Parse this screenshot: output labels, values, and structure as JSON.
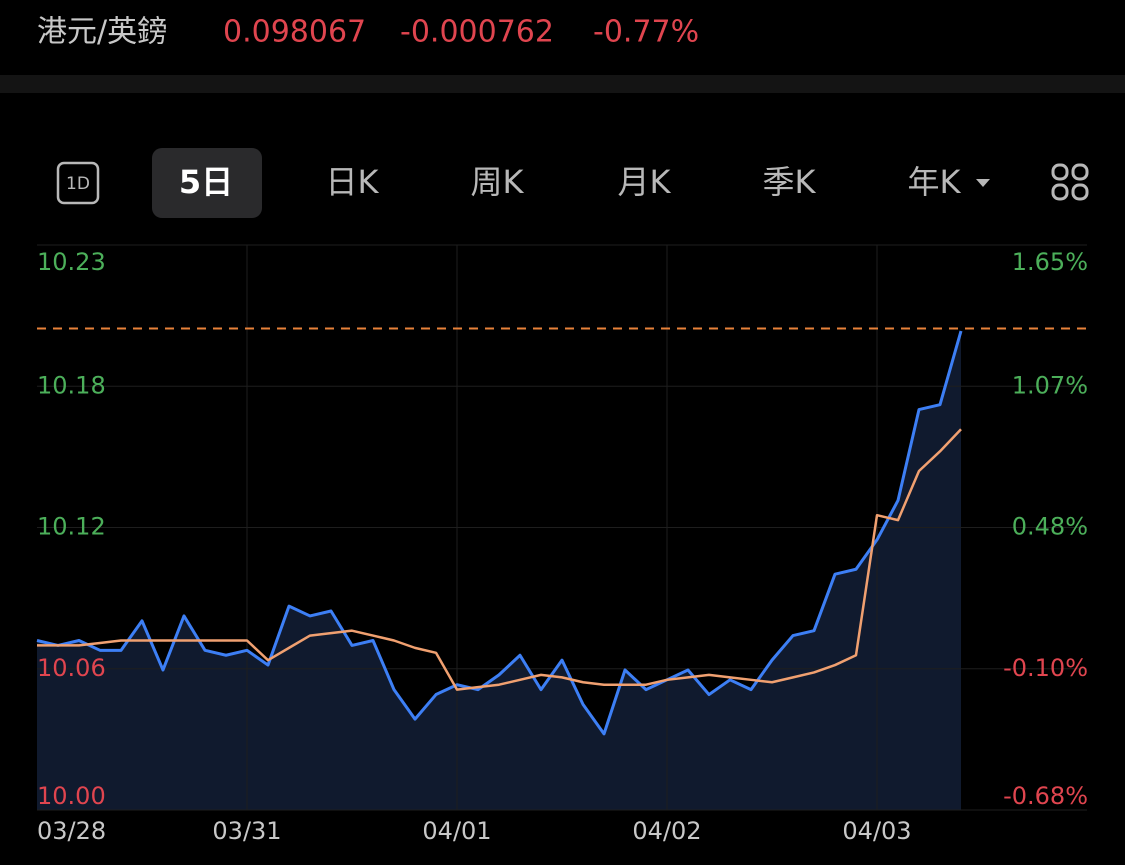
{
  "header": {
    "pair": "港元/英鎊",
    "price": "0.098067",
    "change": "-0.000762",
    "change_pct": "-0.77%"
  },
  "tabs": [
    "1D",
    "5日",
    "日K",
    "周K",
    "月K",
    "季K",
    "年K"
  ],
  "selected_tab": "5日",
  "chart_data": {
    "type": "line",
    "x": [
      0,
      0.1,
      0.2,
      0.3,
      0.4,
      0.5,
      0.6,
      0.7,
      0.8,
      0.9,
      1,
      1.1,
      1.2,
      1.3,
      1.4,
      1.5,
      1.6,
      1.7,
      1.8,
      1.9,
      2,
      2.1,
      2.2,
      2.3,
      2.4,
      2.5,
      2.6,
      2.7,
      2.8,
      2.9,
      3,
      3.1,
      3.2,
      3.3,
      3.4,
      3.5,
      3.6,
      3.7,
      3.8,
      3.9,
      4,
      4.1,
      4.2,
      4.3,
      4.4
    ],
    "series": [
      {
        "color": "#3d7ff5",
        "values": [
          10.069,
          10.067,
          10.069,
          10.065,
          10.065,
          10.077,
          10.057,
          10.079,
          10.065,
          10.063,
          10.065,
          10.059,
          10.083,
          10.079,
          10.081,
          10.067,
          10.069,
          10.049,
          10.037,
          10.047,
          10.051,
          10.049,
          10.055,
          10.063,
          10.049,
          10.061,
          10.043,
          10.031,
          10.057,
          10.049,
          10.053,
          10.057,
          10.047,
          10.053,
          10.049,
          10.061,
          10.071,
          10.073,
          10.096,
          10.098,
          10.11,
          10.126,
          10.163,
          10.165,
          10.195
        ]
      },
      {
        "color": "#f0a070",
        "values": [
          10.067,
          10.067,
          10.067,
          10.068,
          10.069,
          10.069,
          10.069,
          10.069,
          10.069,
          10.069,
          10.069,
          10.061,
          10.066,
          10.071,
          10.072,
          10.073,
          10.071,
          10.069,
          10.066,
          10.064,
          10.049,
          10.05,
          10.051,
          10.053,
          10.055,
          10.054,
          10.052,
          10.051,
          10.051,
          10.051,
          10.053,
          10.054,
          10.055,
          10.054,
          10.053,
          10.052,
          10.054,
          10.056,
          10.059,
          10.063,
          10.12,
          10.118,
          10.138,
          10.146,
          10.155
        ]
      }
    ],
    "xlim": [
      0,
      5
    ],
    "xticks": [
      {
        "value": 0,
        "label": "03/28"
      },
      {
        "value": 1,
        "label": "03/31"
      },
      {
        "value": 2,
        "label": "04/01"
      },
      {
        "value": 3,
        "label": "04/02"
      },
      {
        "value": 4,
        "label": "04/03"
      }
    ],
    "ylim": [
      10.0,
      10.23
    ],
    "yticks": [
      {
        "value": 10.0,
        "label": "10.00"
      },
      {
        "value": 10.0575,
        "label": "10.06"
      },
      {
        "value": 10.115,
        "label": "10.12"
      },
      {
        "value": 10.1725,
        "label": "10.18"
      },
      {
        "value": 10.23,
        "label": "10.23"
      }
    ],
    "y2lim": [
      -0.68,
      1.65
    ],
    "y2ticks": [
      {
        "value": -0.68,
        "label": "-0.68%"
      },
      {
        "value": -0.0975,
        "label": "-0.10%"
      },
      {
        "value": 0.485,
        "label": "0.48%"
      },
      {
        "value": 1.0675,
        "label": "1.07%"
      },
      {
        "value": 1.65,
        "label": "1.65%"
      }
    ],
    "price_line": 10.196,
    "grid": true
  }
}
